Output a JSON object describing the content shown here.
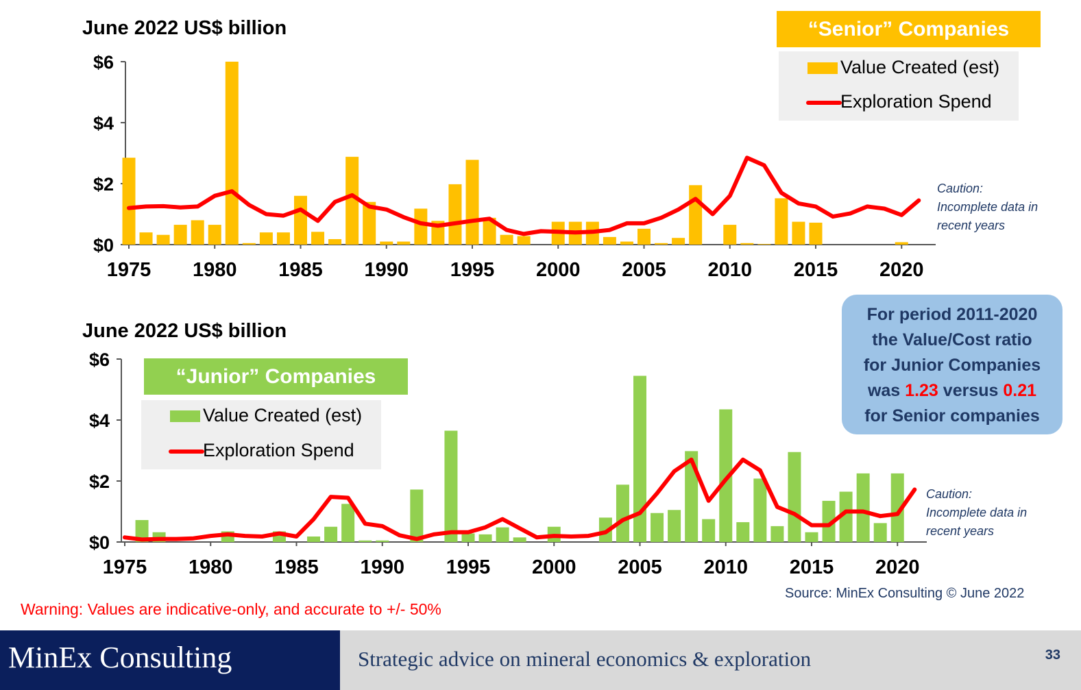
{
  "colors": {
    "senior_bar": "#ffc000",
    "junior_bar": "#92d050",
    "spend_line": "#ff0000",
    "footer_dark": "#0b1f5c"
  },
  "senior": {
    "unit_label": "June 2022 US$ billion",
    "banner": "“Senior” Companies",
    "legend_value": "Value Created (est)",
    "legend_spend": "Exploration Spend",
    "caution_lines": [
      "Caution:",
      "Incomplete data in",
      "recent years"
    ]
  },
  "junior": {
    "unit_label": "June 2022 US$ billion",
    "banner": "“Junior” Companies",
    "legend_value": "Value Created (est)",
    "legend_spend": "Exploration Spend",
    "caution_lines": [
      "Caution:",
      "Incomplete data in",
      "recent years"
    ]
  },
  "callout": {
    "line1": "For period 2011-2020",
    "line2": "the Value/Cost ratio",
    "line3": "for Junior Companies",
    "line4_pre": "was",
    "ratio_junior": "1.23",
    "line4_mid": "versus",
    "ratio_senior": "0.21",
    "line5": "for Senior companies"
  },
  "source": "Source: MinEx Consulting ©  June 2022",
  "warning": "Warning:  Values are indicative-only, and accurate to  +/- 50%",
  "footer": {
    "brand": "MinEx Consulting",
    "tagline": "Strategic advice on mineral economics & exploration",
    "page_number": "33"
  },
  "chart_data": [
    {
      "type": "bar",
      "title": "“Senior” Companies",
      "ylabel": "June 2022 US$ billion",
      "ylim": [
        0,
        6
      ],
      "yticks": [
        "$0",
        "$2",
        "$4",
        "$6"
      ],
      "xticks": [
        "1975",
        "1980",
        "1985",
        "1990",
        "1995",
        "2000",
        "2005",
        "2010",
        "2015",
        "2020"
      ],
      "x": [
        1975,
        1976,
        1977,
        1978,
        1979,
        1980,
        1981,
        1982,
        1983,
        1984,
        1985,
        1986,
        1987,
        1988,
        1989,
        1990,
        1991,
        1992,
        1993,
        1994,
        1995,
        1996,
        1997,
        1998,
        1999,
        2000,
        2001,
        2002,
        2003,
        2004,
        2005,
        2006,
        2007,
        2008,
        2009,
        2010,
        2011,
        2012,
        2013,
        2014,
        2015,
        2016,
        2017,
        2018,
        2019,
        2020,
        2021
      ],
      "series": [
        {
          "name": "Value Created (est)",
          "kind": "bar",
          "values": [
            2.85,
            0.4,
            0.32,
            0.65,
            0.8,
            0.65,
            6.0,
            0.05,
            0.4,
            0.4,
            1.6,
            0.42,
            0.18,
            2.88,
            1.4,
            0.1,
            0.1,
            1.18,
            0.78,
            1.98,
            2.78,
            0.88,
            0.32,
            0.28,
            0,
            0.75,
            0.75,
            0.75,
            0.25,
            0.1,
            0.52,
            0.05,
            0.22,
            1.95,
            0,
            0.65,
            0.05,
            0.02,
            1.52,
            0.75,
            0.72,
            0,
            0,
            0,
            0,
            0.08,
            0
          ]
        },
        {
          "name": "Exploration Spend",
          "kind": "line",
          "values": [
            1.2,
            1.25,
            1.26,
            1.22,
            1.25,
            1.6,
            1.75,
            1.3,
            1.0,
            0.95,
            1.15,
            0.78,
            1.4,
            1.62,
            1.25,
            1.15,
            0.9,
            0.7,
            0.62,
            0.7,
            0.78,
            0.85,
            0.48,
            0.35,
            0.44,
            0.42,
            0.4,
            0.42,
            0.48,
            0.7,
            0.7,
            0.88,
            1.15,
            1.5,
            1.0,
            1.6,
            2.85,
            2.6,
            1.7,
            1.35,
            1.25,
            0.92,
            1.02,
            1.25,
            1.18,
            0.97,
            1.45
          ]
        }
      ]
    },
    {
      "type": "bar",
      "title": "“Junior” Companies",
      "ylabel": "June 2022 US$ billion",
      "ylim": [
        0,
        6
      ],
      "yticks": [
        "$0",
        "$2",
        "$4",
        "$6"
      ],
      "xticks": [
        "1975",
        "1980",
        "1985",
        "1990",
        "1995",
        "2000",
        "2005",
        "2010",
        "2015",
        "2020"
      ],
      "x": [
        1975,
        1976,
        1977,
        1978,
        1979,
        1980,
        1981,
        1982,
        1983,
        1984,
        1985,
        1986,
        1987,
        1988,
        1989,
        1990,
        1991,
        1992,
        1993,
        1994,
        1995,
        1996,
        1997,
        1998,
        1999,
        2000,
        2001,
        2002,
        2003,
        2004,
        2005,
        2006,
        2007,
        2008,
        2009,
        2010,
        2011,
        2012,
        2013,
        2014,
        2015,
        2016,
        2017,
        2018,
        2019,
        2020,
        2021
      ],
      "series": [
        {
          "name": "Value Created (est)",
          "kind": "bar",
          "values": [
            0,
            0.72,
            0.32,
            0,
            0,
            0,
            0.35,
            0,
            0,
            0.35,
            0,
            0.18,
            0.5,
            1.25,
            0.05,
            0.05,
            0,
            1.72,
            0,
            3.65,
            0.28,
            0.25,
            0.48,
            0.15,
            0,
            0.5,
            0,
            0,
            0.8,
            1.88,
            5.45,
            0.95,
            1.05,
            2.98,
            0.75,
            4.35,
            0.65,
            2.08,
            0.52,
            2.95,
            0.32,
            1.35,
            1.65,
            2.25,
            0.62,
            2.25,
            0
          ]
        },
        {
          "name": "Exploration Spend",
          "kind": "line",
          "values": [
            0.15,
            0.08,
            0.1,
            0.1,
            0.12,
            0.2,
            0.25,
            0.2,
            0.18,
            0.28,
            0.18,
            0.75,
            1.48,
            1.45,
            0.6,
            0.52,
            0.22,
            0.1,
            0.25,
            0.32,
            0.32,
            0.48,
            0.75,
            0.45,
            0.15,
            0.2,
            0.18,
            0.2,
            0.32,
            0.72,
            0.95,
            1.6,
            2.32,
            2.7,
            1.35,
            2.05,
            2.7,
            2.35,
            1.15,
            0.92,
            0.55,
            0.55,
            1.0,
            1.0,
            0.85,
            0.92,
            1.72
          ]
        }
      ]
    }
  ]
}
